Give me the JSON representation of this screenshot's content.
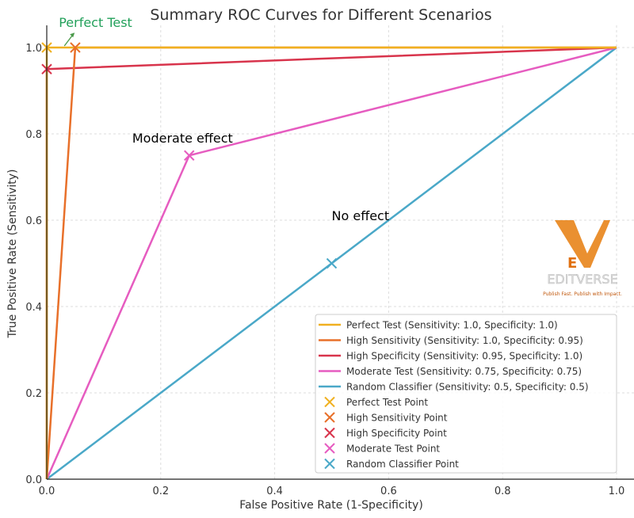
{
  "chart_data": {
    "type": "line",
    "title": "Summary ROC Curves for Different Scenarios",
    "xlabel": "False Positive Rate (1-Specificity)",
    "ylabel": "True Positive Rate (Sensitivity)",
    "xlim": [
      0,
      1
    ],
    "ylim": [
      0,
      1
    ],
    "xticks": [
      "0.0",
      "0.2",
      "0.4",
      "0.6",
      "0.8",
      "1.0"
    ],
    "yticks": [
      "0.0",
      "0.2",
      "0.4",
      "0.6",
      "0.8",
      "1.0"
    ],
    "grid": true,
    "legend_position": "lower-right",
    "series": [
      {
        "name": "Perfect Test (Sensitivity: 1.0, Specificity: 1.0)",
        "color": "#f0b020",
        "x": [
          0,
          0,
          1
        ],
        "y": [
          0,
          1,
          1
        ]
      },
      {
        "name": "High Sensitivity (Sensitivity: 1.0, Specificity: 0.95)",
        "color": "#e8702a",
        "x": [
          0,
          0.05,
          1
        ],
        "y": [
          0,
          1,
          1
        ]
      },
      {
        "name": "High Specificity (Sensitivity: 0.95, Specificity: 1.0)",
        "color": "#d8344c",
        "x": [
          0,
          0,
          1
        ],
        "y": [
          0,
          0.95,
          1
        ]
      },
      {
        "name": "Moderate Test (Sensitivity: 0.75, Specificity: 0.75)",
        "color": "#e65cc0",
        "x": [
          0,
          0.25,
          1
        ],
        "y": [
          0,
          0.75,
          1
        ]
      },
      {
        "name": "Random Classifier (Sensitivity: 0.5, Specificity: 0.5)",
        "color": "#4aa8c8",
        "x": [
          0,
          0.5,
          1
        ],
        "y": [
          0,
          0.5,
          1
        ]
      }
    ],
    "points": [
      {
        "name": "Perfect Test Point",
        "color": "#f0b020",
        "x": 0,
        "y": 1
      },
      {
        "name": "High Sensitivity Point",
        "color": "#e8702a",
        "x": 0.05,
        "y": 1
      },
      {
        "name": "High Specificity Point",
        "color": "#d8344c",
        "x": 0,
        "y": 0.95
      },
      {
        "name": "Moderate Test Point",
        "color": "#e65cc0",
        "x": 0.25,
        "y": 0.75
      },
      {
        "name": "Random Classifier Point",
        "color": "#4aa8c8",
        "x": 0.5,
        "y": 0.5
      }
    ],
    "annotations": [
      {
        "text": "Perfect Test",
        "x": 0.01,
        "y": 1.04,
        "color": "#22a05a",
        "arrow_to": [
          0.0,
          1.0
        ]
      },
      {
        "text": "Moderate effect",
        "x": 0.15,
        "y": 0.78,
        "color": "#000000"
      },
      {
        "text": "No effect",
        "x": 0.5,
        "y": 0.6,
        "color": "#000000"
      }
    ]
  },
  "watermark": {
    "logo_letter": "E",
    "brand": "EDITVERSE",
    "tagline": "Publish Fast. Publish with Impact."
  }
}
